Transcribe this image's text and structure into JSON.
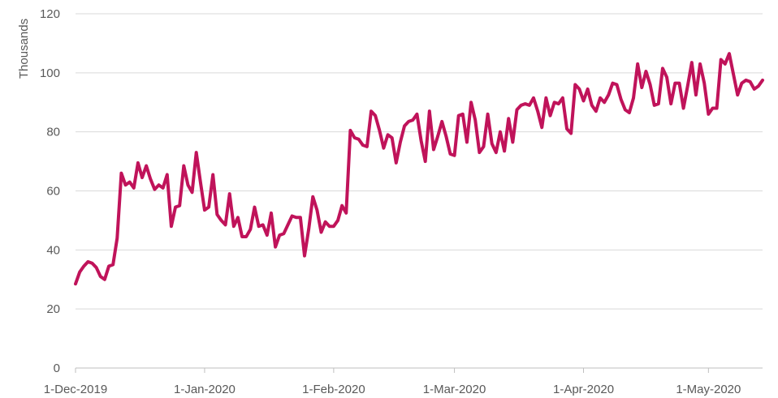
{
  "chart_data": {
    "type": "line",
    "title": "",
    "xlabel": "",
    "ylabel": "Thousands",
    "ylim": [
      0,
      120
    ],
    "yticks": [
      0,
      20,
      40,
      60,
      80,
      100,
      120
    ],
    "xlim": [
      "2019-12-01",
      "2020-05-14"
    ],
    "xticks": [
      {
        "date": "2019-12-01",
        "label": "1-Dec-2019"
      },
      {
        "date": "2020-01-01",
        "label": "1-Jan-2020"
      },
      {
        "date": "2020-02-01",
        "label": "1-Feb-2020"
      },
      {
        "date": "2020-03-01",
        "label": "1-Mar-2020"
      },
      {
        "date": "2020-04-01",
        "label": "1-Apr-2020"
      },
      {
        "date": "2020-05-01",
        "label": "1-May-2020"
      }
    ],
    "grid": "horizontal",
    "series": [
      {
        "color": "#c0135a",
        "x": [
          "2019-12-01",
          "2019-12-02",
          "2019-12-03",
          "2019-12-04",
          "2019-12-05",
          "2019-12-06",
          "2019-12-07",
          "2019-12-08",
          "2019-12-09",
          "2019-12-10",
          "2019-12-11",
          "2019-12-12",
          "2019-12-13",
          "2019-12-14",
          "2019-12-15",
          "2019-12-16",
          "2019-12-17",
          "2019-12-18",
          "2019-12-19",
          "2019-12-20",
          "2019-12-21",
          "2019-12-22",
          "2019-12-23",
          "2019-12-24",
          "2019-12-25",
          "2019-12-26",
          "2019-12-27",
          "2019-12-28",
          "2019-12-29",
          "2019-12-30",
          "2019-12-31",
          "2020-01-01",
          "2020-01-02",
          "2020-01-03",
          "2020-01-04",
          "2020-01-05",
          "2020-01-06",
          "2020-01-07",
          "2020-01-08",
          "2020-01-09",
          "2020-01-10",
          "2020-01-11",
          "2020-01-12",
          "2020-01-13",
          "2020-01-14",
          "2020-01-15",
          "2020-01-16",
          "2020-01-17",
          "2020-01-18",
          "2020-01-19",
          "2020-01-20",
          "2020-01-21",
          "2020-01-22",
          "2020-01-23",
          "2020-01-24",
          "2020-01-25",
          "2020-01-26",
          "2020-01-27",
          "2020-01-28",
          "2020-01-29",
          "2020-01-30",
          "2020-01-31",
          "2020-02-01",
          "2020-02-02",
          "2020-02-03",
          "2020-02-04",
          "2020-02-05",
          "2020-02-06",
          "2020-02-07",
          "2020-02-08",
          "2020-02-09",
          "2020-02-10",
          "2020-02-11",
          "2020-02-12",
          "2020-02-13",
          "2020-02-14",
          "2020-02-15",
          "2020-02-16",
          "2020-02-17",
          "2020-02-18",
          "2020-02-19",
          "2020-02-20",
          "2020-02-21",
          "2020-02-22",
          "2020-02-23",
          "2020-02-24",
          "2020-02-25",
          "2020-02-26",
          "2020-02-27",
          "2020-02-28",
          "2020-02-29",
          "2020-03-01",
          "2020-03-02",
          "2020-03-03",
          "2020-03-04",
          "2020-03-05",
          "2020-03-06",
          "2020-03-07",
          "2020-03-08",
          "2020-03-09",
          "2020-03-10",
          "2020-03-11",
          "2020-03-12",
          "2020-03-13",
          "2020-03-14",
          "2020-03-15",
          "2020-03-16",
          "2020-03-17",
          "2020-03-18",
          "2020-03-19",
          "2020-03-20",
          "2020-03-21",
          "2020-03-22",
          "2020-03-23",
          "2020-03-24",
          "2020-03-25",
          "2020-03-26",
          "2020-03-27",
          "2020-03-28",
          "2020-03-29",
          "2020-03-30",
          "2020-03-31",
          "2020-04-01",
          "2020-04-02",
          "2020-04-03",
          "2020-04-04",
          "2020-04-05",
          "2020-04-06",
          "2020-04-07",
          "2020-04-08",
          "2020-04-09",
          "2020-04-10",
          "2020-04-11",
          "2020-04-12",
          "2020-04-13",
          "2020-04-14",
          "2020-04-15",
          "2020-04-16",
          "2020-04-17",
          "2020-04-18",
          "2020-04-19",
          "2020-04-20",
          "2020-04-21",
          "2020-04-22",
          "2020-04-23",
          "2020-04-24",
          "2020-04-25",
          "2020-04-26",
          "2020-04-27",
          "2020-04-28",
          "2020-04-29",
          "2020-04-30",
          "2020-05-01",
          "2020-05-02",
          "2020-05-03",
          "2020-05-04",
          "2020-05-05",
          "2020-05-06",
          "2020-05-07",
          "2020-05-08",
          "2020-05-09",
          "2020-05-10",
          "2020-05-11",
          "2020-05-12",
          "2020-05-13",
          "2020-05-14"
        ],
        "values": [
          28.5,
          32.5,
          34.5,
          36,
          35.5,
          34,
          31,
          30,
          34.5,
          35,
          44,
          66,
          62,
          63,
          61,
          69.5,
          64.5,
          68.5,
          64,
          60.5,
          62,
          61,
          65.5,
          48,
          54.5,
          55,
          68.5,
          62,
          59.5,
          73,
          63,
          53.5,
          54.5,
          65.5,
          52,
          50,
          48.5,
          59,
          48,
          51,
          44.5,
          44.5,
          47,
          54.5,
          48,
          48.5,
          45,
          52.5,
          41,
          45,
          45.5,
          48.5,
          51.5,
          51,
          51,
          38,
          47,
          58,
          53.5,
          46,
          49.5,
          48,
          48,
          50,
          55,
          52.5,
          80.5,
          78,
          77.5,
          75.5,
          75,
          87,
          85.5,
          80.5,
          74.5,
          79,
          78,
          69.5,
          76.5,
          82,
          83.5,
          84,
          86,
          77,
          70,
          87,
          74,
          78.5,
          83.5,
          78.5,
          72.5,
          72,
          85.5,
          86,
          76.5,
          90,
          84,
          73,
          75,
          86,
          76,
          73,
          80,
          73.5,
          84.5,
          76.5,
          87.5,
          89,
          89.5,
          89,
          91.5,
          87,
          81.5,
          91.5,
          85.5,
          90,
          89.5,
          91.5,
          81,
          79.5,
          96,
          94.5,
          90.5,
          94.5,
          89,
          87,
          91.5,
          90,
          92.5,
          96.5,
          96,
          91,
          87.5,
          86.5,
          91.5,
          103,
          95,
          100.5,
          96,
          89,
          89.5,
          101.5,
          98.5,
          89.5,
          96.5,
          96.5,
          88,
          95.5,
          103.5,
          92.5,
          103,
          96.5,
          86,
          88,
          88,
          104.5,
          103,
          106.5,
          99.5,
          92.5,
          96.5,
          97.5,
          97,
          94.5,
          95.5,
          97.5
        ]
      }
    ]
  }
}
